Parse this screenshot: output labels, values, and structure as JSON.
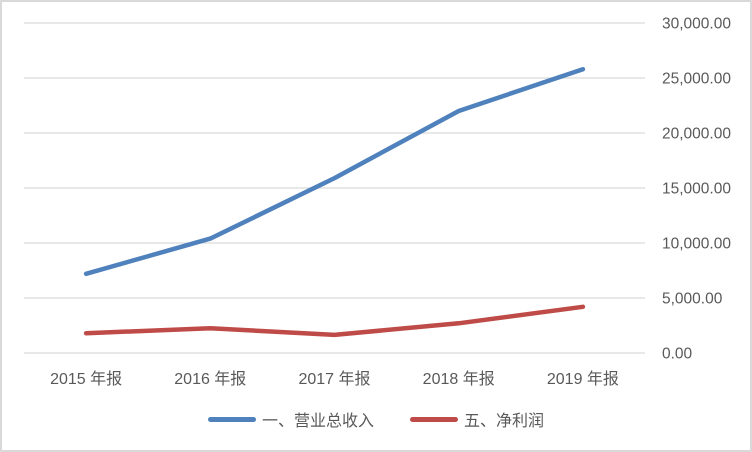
{
  "chart_data": {
    "type": "line",
    "title": "",
    "categories": [
      "2015 年报",
      "2016 年报",
      "2017 年报",
      "2018 年报",
      "2019 年报"
    ],
    "series": [
      {
        "name": "一、营业总收入",
        "color": "#4F81BD",
        "values": [
          7200,
          10400,
          15900,
          22000,
          25800
        ]
      },
      {
        "name": "五、净利润",
        "color": "#BE4B48",
        "values": [
          1800,
          2250,
          1650,
          2700,
          4200
        ]
      }
    ],
    "y_axis": {
      "side": "right",
      "min": 0,
      "max": 30000,
      "step": 5000,
      "tick_labels": [
        "0.00",
        "5,000.00",
        "10,000.00",
        "15,000.00",
        "20,000.00",
        "25,000.00",
        "30,000.00"
      ]
    },
    "grid": true,
    "legend_position": "bottom"
  },
  "colors": {
    "grid": "#D9D9D9",
    "frame": "#D9D9D9",
    "text": "#595959"
  }
}
